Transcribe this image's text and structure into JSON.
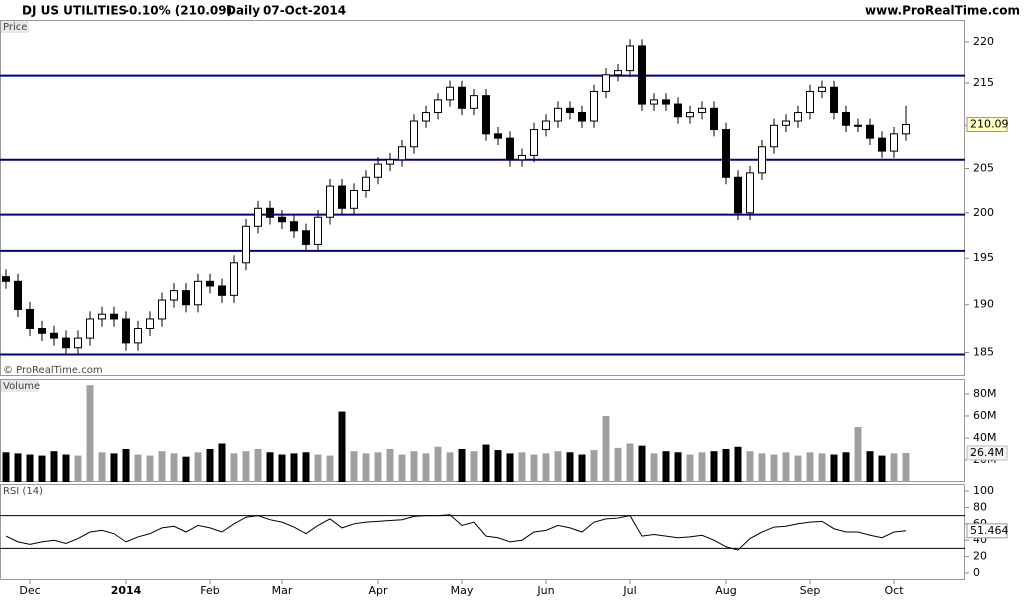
{
  "header": {
    "instrument": "DJ US UTILITIES",
    "change": "-0.10% (210.09)",
    "period": "Daily",
    "date": "07-Oct-2014",
    "site": "www.ProRealTime.com"
  },
  "chart_data": [
    {
      "type": "candlestick",
      "label": "Price",
      "watermark": "© ProRealTime.com",
      "log_scale": true,
      "ylim": [
        182.7,
        222.7
      ],
      "yticks": [
        185,
        190,
        195,
        200,
        205,
        210,
        215,
        220
      ],
      "levels": [
        215.9,
        206,
        199.8,
        195.8,
        184.8
      ],
      "level_color": "#000080",
      "up_color": "#ffffff",
      "down_color": "#000000",
      "categories": [
        null,
        null,
        "Dec",
        null,
        null,
        null,
        null,
        null,
        null,
        null,
        "2014",
        null,
        null,
        null,
        null,
        null,
        null,
        "Feb",
        null,
        null,
        null,
        null,
        null,
        "Mar",
        null,
        null,
        null,
        null,
        null,
        null,
        null,
        "Apr",
        null,
        null,
        null,
        null,
        null,
        null,
        "May",
        null,
        null,
        null,
        null,
        null,
        null,
        "Jun",
        null,
        null,
        null,
        null,
        null,
        null,
        "Jul",
        null,
        null,
        null,
        null,
        null,
        null,
        null,
        "Aug",
        null,
        null,
        null,
        null,
        null,
        null,
        "Sep",
        null,
        null,
        null,
        null,
        null,
        null,
        "Oct",
        null
      ],
      "open": [
        193,
        192.5,
        189.5,
        187.5,
        187,
        186.5,
        185.5,
        186.5,
        188.5,
        189,
        188.5,
        186,
        187.5,
        188.5,
        190.5,
        191.5,
        190,
        192.5,
        192,
        191,
        194.5,
        198.5,
        200.5,
        199.5,
        199,
        198,
        196.5,
        199.5,
        203,
        200.5,
        202.5,
        204,
        205.5,
        206,
        207.5,
        210.5,
        211.5,
        213,
        214.5,
        212,
        213.5,
        209,
        208.5,
        206,
        206.5,
        209.5,
        210.5,
        212,
        211.5,
        210.5,
        214,
        216,
        216.5,
        219.5,
        212.5,
        213,
        212.5,
        211,
        211.5,
        212,
        209.5,
        204,
        200,
        204.5,
        207.5,
        210,
        210.5,
        211.5,
        214,
        214.5,
        211.5,
        210,
        210,
        208.5,
        207,
        209
      ],
      "high": [
        193.8,
        193.3,
        190.3,
        188.3,
        187.8,
        187.3,
        187.3,
        189.3,
        189.8,
        189.8,
        189.3,
        188.3,
        189.3,
        191.3,
        192.3,
        192.3,
        193.3,
        193.3,
        192.8,
        195.3,
        199.3,
        201.3,
        201.3,
        200.3,
        199.8,
        198.8,
        200.3,
        203.8,
        203.8,
        203.3,
        204.8,
        206.3,
        206.8,
        208.3,
        211.3,
        212.3,
        213.8,
        215.3,
        215.3,
        214.3,
        214.3,
        209.8,
        209.3,
        207.3,
        210.3,
        211.3,
        212.8,
        212.8,
        212.3,
        214.8,
        216.8,
        217.3,
        220.3,
        220.3,
        213.8,
        213.8,
        213.3,
        212.3,
        212.8,
        212.8,
        210.3,
        204.8,
        205.3,
        208.3,
        210.8,
        211.3,
        212.3,
        214.8,
        215.3,
        215.3,
        212.3,
        210.8,
        210.8,
        209.3,
        209.8,
        212.3
      ],
      "low": [
        191.7,
        188.7,
        186.7,
        186.2,
        185.7,
        184.7,
        184.7,
        185.7,
        187.7,
        187.7,
        185.2,
        185.2,
        186.7,
        187.7,
        189.7,
        189.2,
        189.2,
        191.2,
        190.2,
        190.2,
        193.7,
        197.7,
        198.7,
        198.2,
        197.2,
        195.7,
        195.7,
        198.7,
        199.7,
        199.7,
        201.7,
        203.2,
        204.7,
        205.2,
        206.7,
        209.7,
        210.7,
        212.2,
        211.2,
        211.2,
        208.2,
        207.7,
        205.2,
        205.2,
        205.7,
        208.7,
        209.7,
        210.7,
        209.7,
        209.7,
        213.2,
        215.2,
        215.7,
        211.7,
        211.7,
        211.7,
        210.2,
        210.2,
        210.7,
        208.7,
        203.2,
        199.2,
        199.2,
        203.7,
        206.7,
        209.2,
        209.7,
        210.7,
        213.2,
        210.7,
        209.2,
        209.2,
        207.7,
        206.2,
        206.2,
        208.2
      ],
      "close": [
        192.5,
        189.5,
        187.5,
        187,
        186.5,
        185.5,
        186.5,
        188.5,
        189,
        188.5,
        186,
        187.5,
        188.5,
        190.5,
        191.5,
        190,
        192.5,
        192,
        191,
        194.5,
        198.5,
        200.5,
        199.5,
        199,
        198,
        196.5,
        199.5,
        203,
        200.5,
        202.5,
        204,
        205.5,
        206,
        207.5,
        210.5,
        211.5,
        213,
        214.5,
        212,
        213.5,
        209,
        208.5,
        206,
        206.5,
        209.5,
        210.5,
        212,
        211.5,
        210.5,
        214,
        216,
        216.5,
        219.5,
        212.5,
        213,
        212.5,
        211,
        211.5,
        212,
        209.5,
        204,
        200,
        204.5,
        207.5,
        210,
        210.5,
        211.5,
        214,
        214.5,
        211.5,
        210,
        210,
        208.5,
        207,
        209,
        210.09
      ]
    },
    {
      "type": "bar",
      "label": "Volume",
      "ylim": [
        0,
        92.7
      ],
      "yticks": [
        {
          "value": 20,
          "label": "20M"
        },
        {
          "value": 40,
          "label": "40M"
        },
        {
          "value": 60,
          "label": "60M"
        },
        {
          "value": 80,
          "label": "80M"
        }
      ],
      "up_color": "#a0a0a0",
      "down_color": "#000000",
      "values": [
        27,
        26,
        25,
        24,
        28,
        25,
        24,
        88,
        27,
        26,
        30,
        25,
        24,
        28,
        26,
        23,
        27,
        30,
        35,
        26,
        28,
        30,
        27,
        25,
        26,
        27,
        25,
        24,
        64,
        28,
        26,
        27,
        30,
        25,
        28,
        26,
        32,
        27,
        30,
        28,
        34,
        29,
        26,
        27,
        25,
        26,
        28,
        27,
        25,
        29,
        60,
        31,
        35,
        33,
        26,
        28,
        27,
        25,
        27,
        28,
        30,
        32,
        28,
        26,
        25,
        27,
        24,
        27,
        26,
        25,
        27,
        50,
        28,
        24,
        26,
        26.4
      ],
      "value_labels": [
        null,
        null,
        null,
        null,
        null,
        null,
        null,
        null,
        null,
        null,
        null,
        null,
        null,
        null,
        null,
        null,
        null,
        null,
        null,
        null,
        null,
        null,
        null,
        null,
        null,
        null,
        null,
        null,
        null,
        null,
        null,
        null,
        null,
        null,
        null,
        null,
        null,
        null,
        null,
        null,
        null,
        null,
        null,
        null,
        null,
        null,
        null,
        null,
        null,
        null,
        null,
        null,
        null,
        null,
        null,
        null,
        null,
        null,
        null,
        null,
        null,
        null,
        null,
        null,
        null,
        null,
        null,
        null,
        null,
        null,
        null,
        null,
        null,
        null,
        null,
        "26.4M"
      ]
    },
    {
      "type": "line",
      "label": "RSI (14)",
      "ylim": [
        -8.5,
        107.3
      ],
      "yticks": [
        0,
        20,
        40,
        60,
        80,
        100
      ],
      "levels": [
        70,
        30
      ],
      "color": "#000000",
      "values": [
        45,
        38,
        35,
        38,
        40,
        36,
        42,
        50,
        52,
        48,
        38,
        44,
        48,
        55,
        57,
        50,
        58,
        55,
        50,
        60,
        68,
        70,
        65,
        62,
        56,
        48,
        58,
        66,
        55,
        60,
        62,
        63,
        64,
        65,
        69,
        70,
        70,
        71,
        58,
        62,
        45,
        43,
        38,
        40,
        50,
        52,
        58,
        55,
        50,
        62,
        66,
        67,
        70,
        45,
        47,
        45,
        43,
        44,
        46,
        40,
        32,
        28,
        42,
        50,
        56,
        57,
        60,
        62,
        63,
        54,
        50,
        50,
        46,
        43,
        50,
        51.464
      ]
    }
  ]
}
